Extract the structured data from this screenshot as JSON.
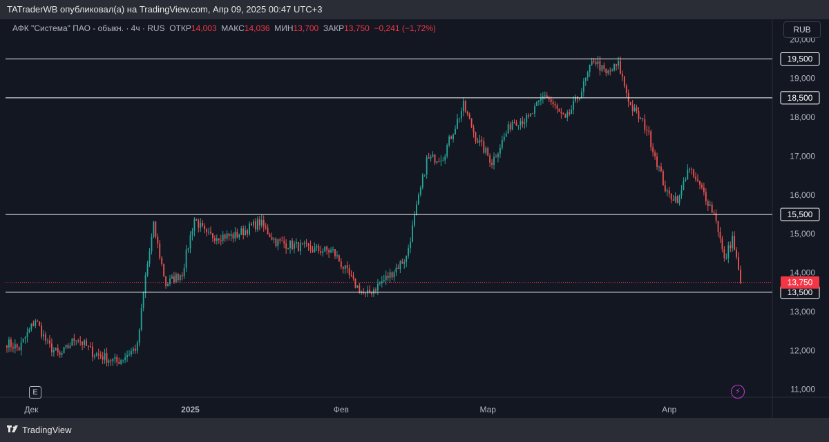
{
  "header": {
    "published_by": "TATraderWB опубликовал(а) на TradingView.com, Апр 09, 2025 00:47 UTC+3"
  },
  "legend": {
    "symbol": "АФК \"Система\" ПАО - обыкн. · 4ч · RUS",
    "open_label": "ОТКР",
    "open_value": "14,003",
    "high_label": "МАКС",
    "high_value": "14,036",
    "low_label": "МИН",
    "low_value": "13,700",
    "close_label": "ЗАКР",
    "close_value": "13,750",
    "change": "−0,241 (−1,72%)"
  },
  "currency_button": "RUB",
  "footer": {
    "brand": "TradingView"
  },
  "badges": {
    "earnings": "E",
    "bolt": "⚡"
  },
  "colors": {
    "up": "#26a69a",
    "down": "#ef5350",
    "background": "#131722",
    "level_line": "#ffffff",
    "last_price": "#f23645"
  },
  "chart_data": {
    "type": "candlestick",
    "y_range": [
      10800,
      20200
    ],
    "y_ticks": [
      11000,
      12000,
      13000,
      14000,
      15000,
      16000,
      17000,
      18000,
      19000,
      20000
    ],
    "y_tick_labels": [
      "11,000",
      "12,000",
      "13,000",
      "14,000",
      "15,000",
      "16,000",
      "17,000",
      "18,000",
      "19,000",
      "20,000"
    ],
    "x_ticks": [
      {
        "label": "Дек",
        "bold": false,
        "index": 12
      },
      {
        "label": "2025",
        "bold": true,
        "index": 90
      },
      {
        "label": "Фев",
        "bold": false,
        "index": 164
      },
      {
        "label": "Мар",
        "bold": false,
        "index": 236
      },
      {
        "label": "Апр",
        "bold": false,
        "index": 325
      }
    ],
    "levels": [
      {
        "value": 19500,
        "label": "19,500"
      },
      {
        "value": 18500,
        "label": "18,500"
      },
      {
        "value": 15500,
        "label": "15,500"
      },
      {
        "value": 13500,
        "label": "13,500"
      }
    ],
    "last_price": {
      "value": 13750,
      "label": "13,750"
    },
    "anchors": [
      [
        0,
        12200
      ],
      [
        6,
        12050
      ],
      [
        14,
        12800
      ],
      [
        20,
        12150
      ],
      [
        26,
        11850
      ],
      [
        34,
        12350
      ],
      [
        42,
        11950
      ],
      [
        54,
        11700
      ],
      [
        64,
        12100
      ],
      [
        68,
        13900
      ],
      [
        72,
        15200
      ],
      [
        78,
        13700
      ],
      [
        86,
        14000
      ],
      [
        92,
        15400
      ],
      [
        98,
        14950
      ],
      [
        112,
        14950
      ],
      [
        124,
        15300
      ],
      [
        132,
        14800
      ],
      [
        150,
        14600
      ],
      [
        160,
        14550
      ],
      [
        170,
        13750
      ],
      [
        176,
        13400
      ],
      [
        188,
        13950
      ],
      [
        196,
        14400
      ],
      [
        200,
        15400
      ],
      [
        206,
        16900
      ],
      [
        214,
        17000
      ],
      [
        224,
        18300
      ],
      [
        230,
        17500
      ],
      [
        238,
        16850
      ],
      [
        248,
        17900
      ],
      [
        256,
        17950
      ],
      [
        264,
        18600
      ],
      [
        274,
        17900
      ],
      [
        282,
        18700
      ],
      [
        288,
        19500
      ],
      [
        294,
        19100
      ],
      [
        300,
        19350
      ],
      [
        306,
        18300
      ],
      [
        314,
        17700
      ],
      [
        324,
        16000
      ],
      [
        330,
        15900
      ],
      [
        334,
        16700
      ],
      [
        342,
        16050
      ],
      [
        348,
        15400
      ],
      [
        352,
        14300
      ],
      [
        356,
        14900
      ],
      [
        360,
        13750
      ]
    ],
    "candle_count": 361
  }
}
